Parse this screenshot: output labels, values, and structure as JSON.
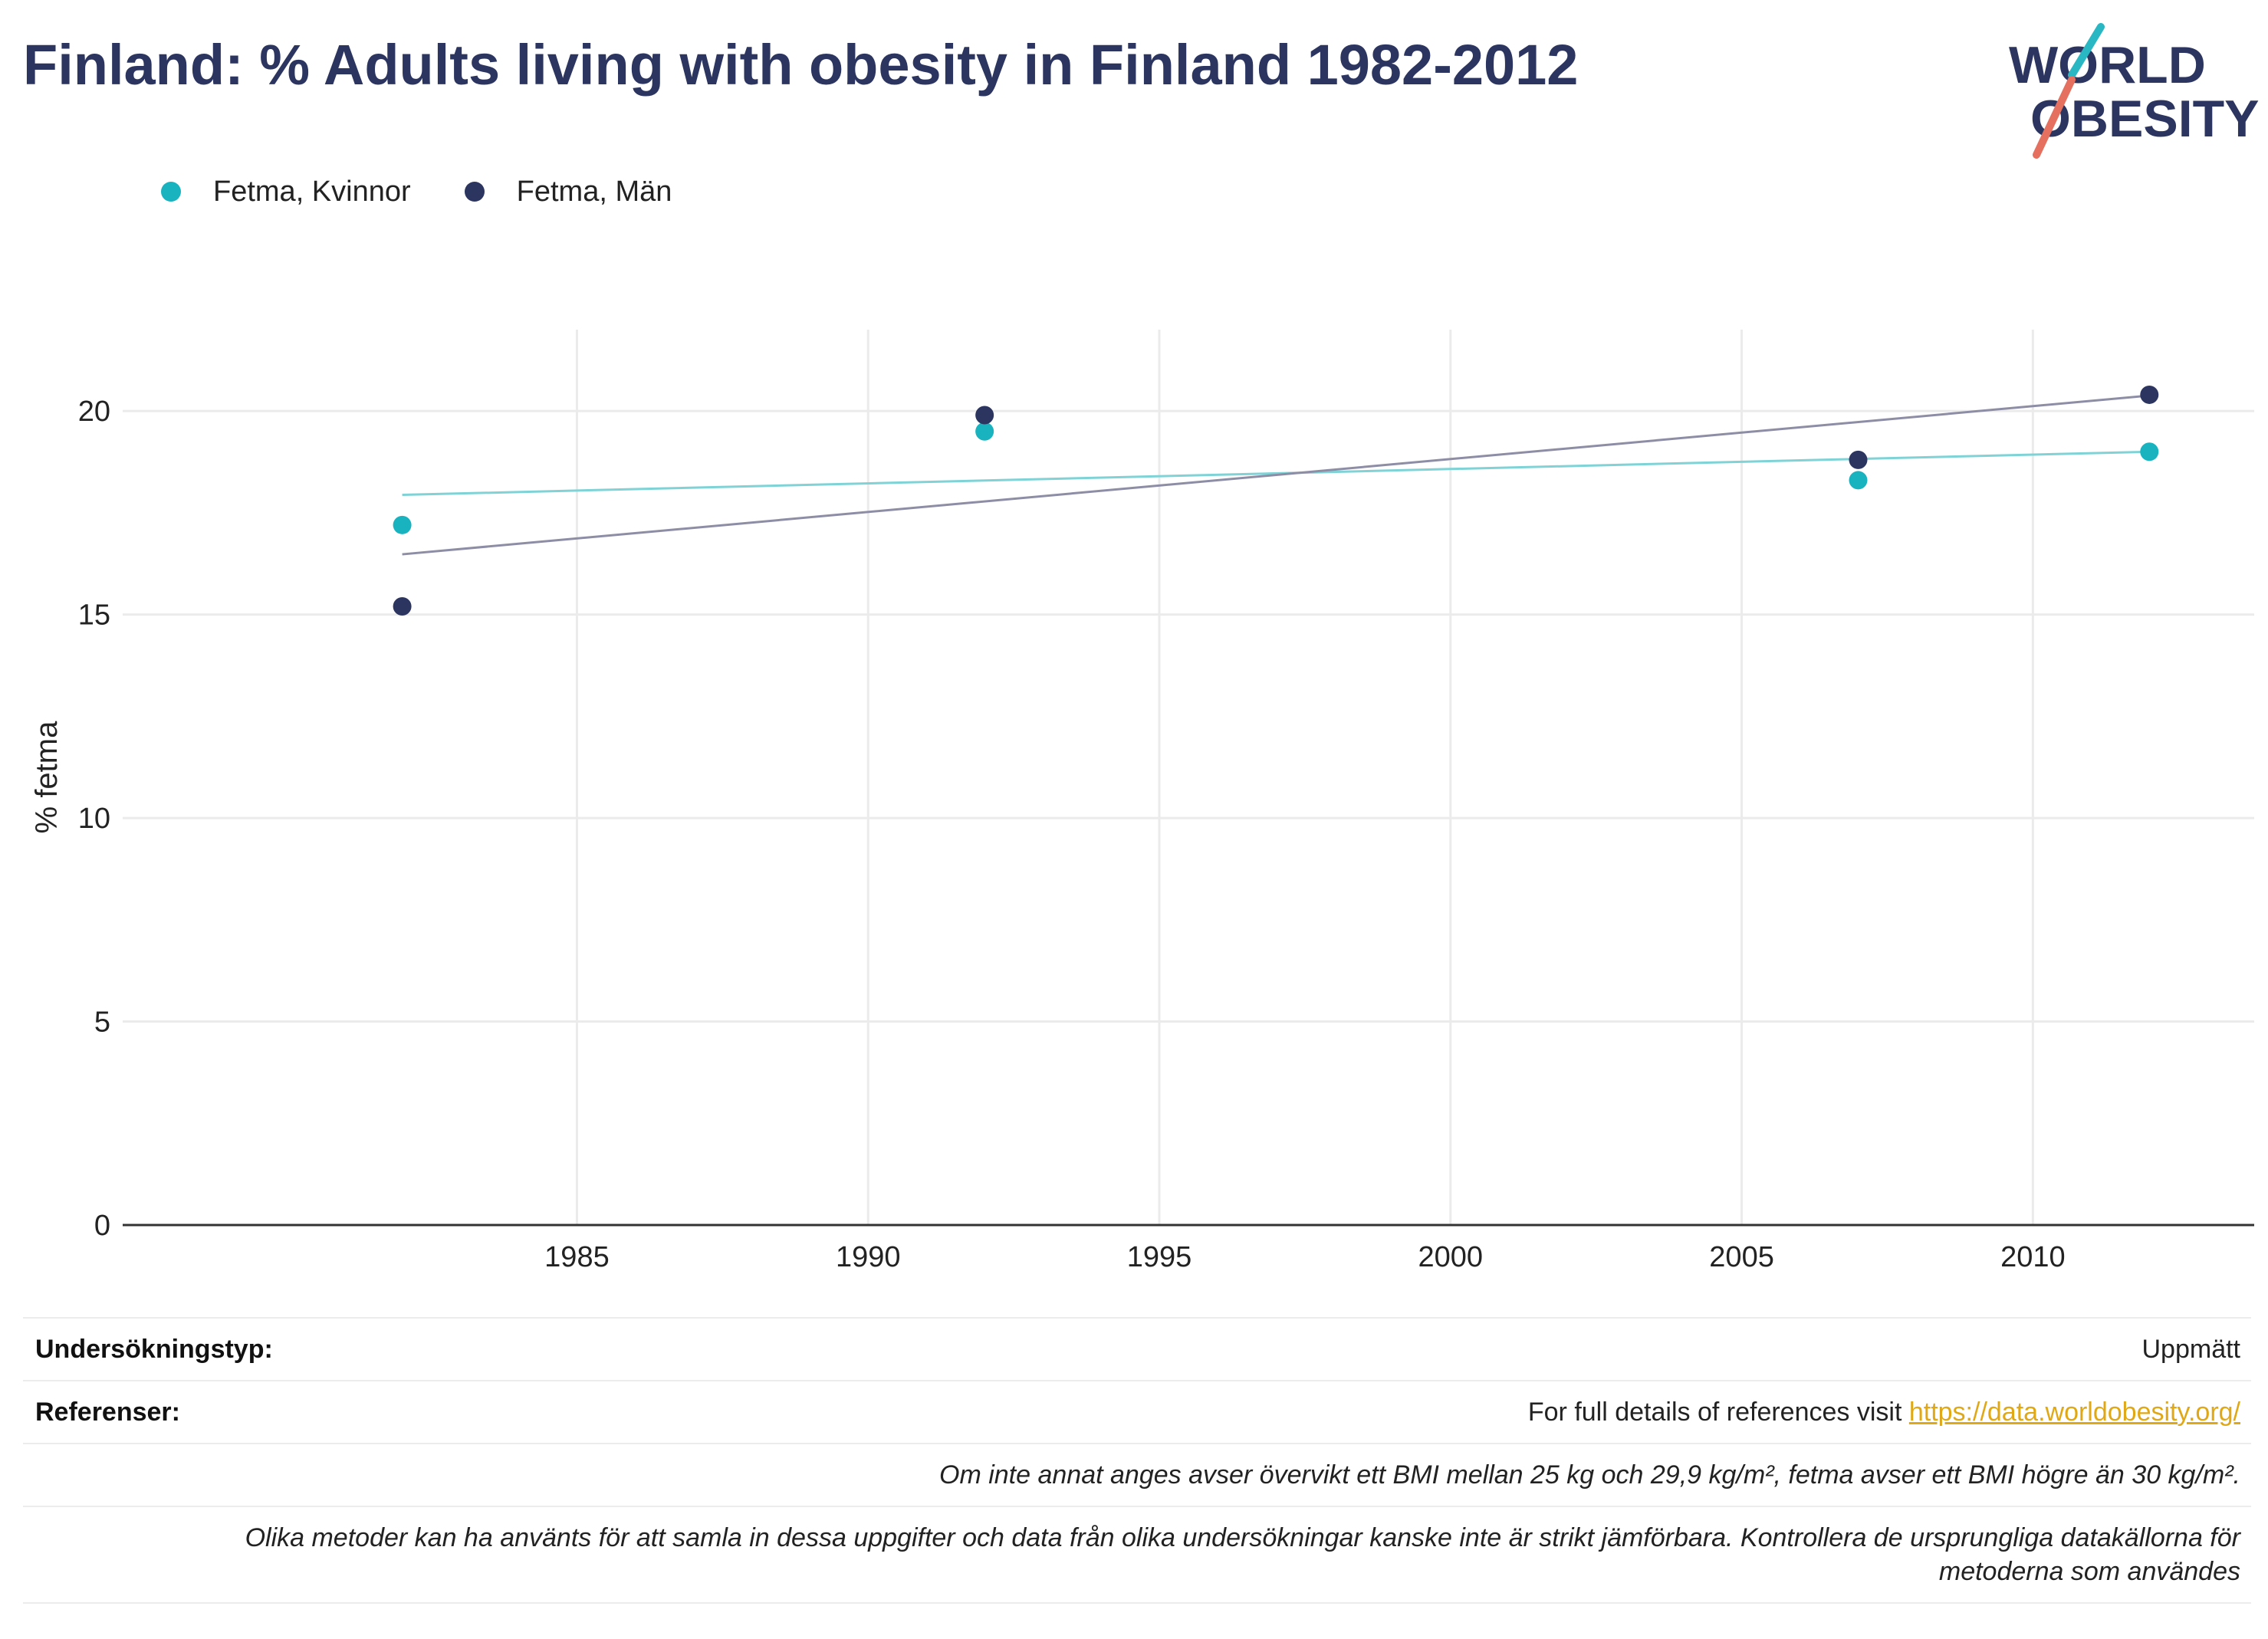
{
  "title": "Finland: % Adults living with obesity in Finland 1982-2012",
  "logo": {
    "line1": "WORLD",
    "line2": "OBESITY",
    "colors": {
      "text": "#2b3560",
      "teal": "#2ab7c4",
      "coral": "#e5705f"
    }
  },
  "colors": {
    "women": "#19b3c0",
    "men": "#2b3560",
    "women_trend": "#7fd3d6",
    "men_trend": "#8d8ea6",
    "grid": "#ebebeb",
    "axis": "#333333"
  },
  "chart_data": {
    "type": "scatter",
    "ylabel": "% fetma",
    "xlabel": "",
    "xlim": [
      1977.2,
      2013.8
    ],
    "ylim": [
      0,
      22
    ],
    "x_ticks": [
      1985,
      1990,
      1995,
      2000,
      2005,
      2010
    ],
    "y_ticks": [
      0,
      5,
      10,
      15,
      20
    ],
    "grid": true,
    "legend_position": "top-left",
    "series": [
      {
        "name": "Fetma, Kvinnor",
        "x": [
          1982,
          1992,
          2007,
          2012
        ],
        "y": [
          17.2,
          19.5,
          18.3,
          19.0
        ],
        "trend": {
          "x": [
            1982,
            2012
          ],
          "y": [
            17.94,
            19.0
          ]
        }
      },
      {
        "name": "Fetma, Män",
        "x": [
          1982,
          1992,
          2007,
          2012
        ],
        "y": [
          15.2,
          19.9,
          18.8,
          20.4
        ],
        "trend": {
          "x": [
            1982,
            2012
          ],
          "y": [
            16.48,
            20.38
          ]
        }
      }
    ]
  },
  "footer": {
    "survey_label": "Undersökningstyp:",
    "survey_value": "Uppmätt",
    "refs_label": "Referenser:",
    "refs_text": "For full details of references visit ",
    "refs_link": "https://data.worldobesity.org/",
    "note1": "Om inte annat anges avser övervikt ett BMI mellan 25 kg och 29,9 kg/m², fetma avser ett BMI högre än 30 kg/m².",
    "note2_line1": "Olika metoder kan ha använts för att samla in dessa uppgifter och data från olika undersökningar kanske inte är strikt jämförbara. Kontrollera de ursprungliga datakällorna för",
    "note2_line2": "metoderna som användes"
  }
}
